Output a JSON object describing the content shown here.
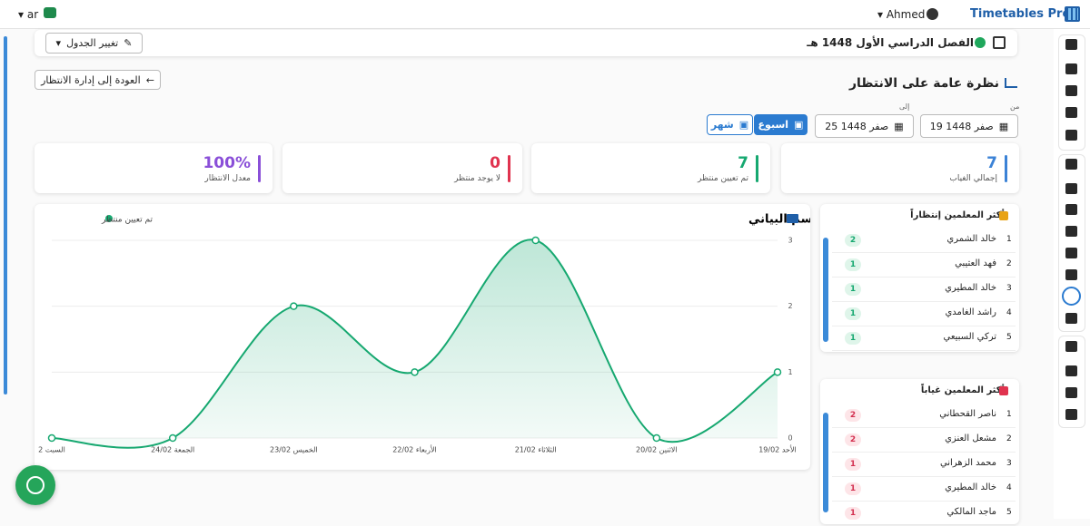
{
  "header": {
    "brand": "Timetables Pro",
    "user": "Ahmed",
    "lang": "ar"
  },
  "term": {
    "title": "الفصل الدراسي الأول 1448 هـ",
    "change_button": "تغيير الجدول"
  },
  "back_button": "العودة إلى إدارة الانتظار",
  "page_title": "نظرة عامة على الانتظار",
  "filters": {
    "from_label": "من",
    "from_value": "19 صفر 1448",
    "to_label": "إلى",
    "to_value": "25 صفر 1448",
    "week": "اسبوع",
    "month": "شهر"
  },
  "stats": [
    {
      "value": "7",
      "label": "إجمالي الغياب",
      "color": "#3b82d6"
    },
    {
      "value": "7",
      "label": "تم تعيين منتظر",
      "color": "#16a870"
    },
    {
      "value": "0",
      "label": "لا يوجد منتظر",
      "color": "#e0334f"
    },
    {
      "value": "100%",
      "label": "معدل الانتظار",
      "color": "#8a4fd8"
    }
  ],
  "chart_data": {
    "type": "line",
    "title": "الرسم البياني",
    "x_direction": "rtl",
    "y_axis_side": "right",
    "grid": true,
    "categories": [
      "الأحد 19/02",
      "الاثنين 20/02",
      "الثلاثاء 21/02",
      "الأربعاء 22/02",
      "الخميس 23/02",
      "الجمعة 24/02",
      "السبت 2"
    ],
    "series": [
      {
        "name": "تم تعيين منتظر",
        "color": "#16a870",
        "values": [
          1,
          0,
          3,
          1,
          2,
          0,
          0
        ]
      }
    ],
    "ylim": [
      0,
      3
    ],
    "yticks": [
      0,
      1,
      2,
      3
    ]
  },
  "top_waiting": {
    "title": "أكثر المعلمين إنتظاراً",
    "rows": [
      {
        "rank": "1",
        "name": "خالد الشمري",
        "count": "2"
      },
      {
        "rank": "2",
        "name": "فهد العتيبي",
        "count": "1"
      },
      {
        "rank": "3",
        "name": "خالد المطيري",
        "count": "1"
      },
      {
        "rank": "4",
        "name": "راشد الغامدي",
        "count": "1"
      },
      {
        "rank": "5",
        "name": "تركي السبيعي",
        "count": "1"
      }
    ]
  },
  "top_absence": {
    "title": "أكثر المعلمين غياباً",
    "rows": [
      {
        "rank": "1",
        "name": "ناصر القحطاني",
        "count": "2"
      },
      {
        "rank": "2",
        "name": "مشعل العنزي",
        "count": "2"
      },
      {
        "rank": "3",
        "name": "محمد الزهراني",
        "count": "1"
      },
      {
        "rank": "4",
        "name": "خالد المطيري",
        "count": "1"
      },
      {
        "rank": "5",
        "name": "ماجد المالكي",
        "count": "1"
      }
    ]
  }
}
